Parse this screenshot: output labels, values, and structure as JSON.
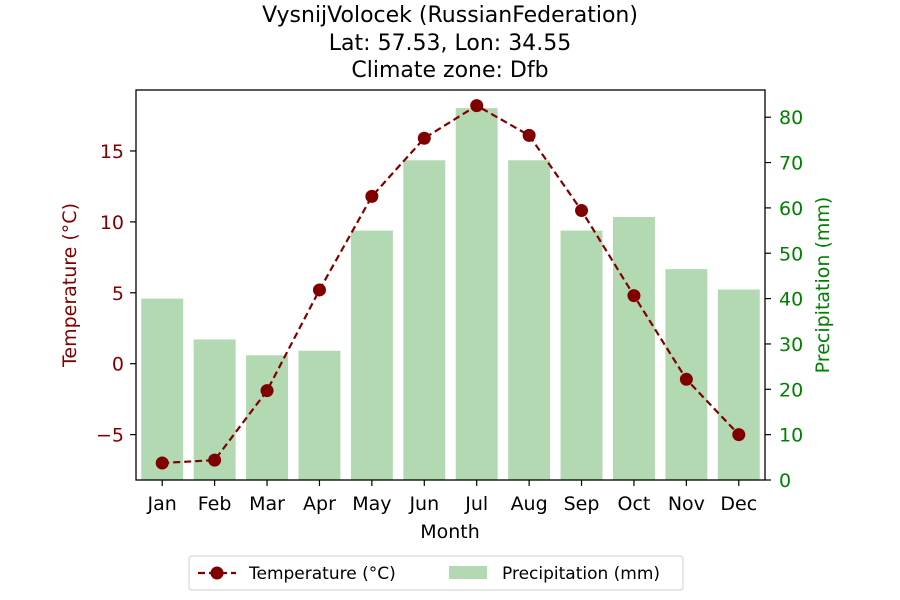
{
  "chart_data": {
    "type": "bar",
    "title": "VysnijVolocek (RussianFederation)",
    "subtitle_lines": [
      "Lat: 57.53, Lon: 34.55",
      "Climate zone: Dfb"
    ],
    "xlabel": "Month",
    "ylabel_left": "Temperature (°C)",
    "ylabel_right": "Precipitation (mm)",
    "categories": [
      "Jan",
      "Feb",
      "Mar",
      "Apr",
      "May",
      "Jun",
      "Jul",
      "Aug",
      "Sep",
      "Oct",
      "Nov",
      "Dec"
    ],
    "series": [
      {
        "name": "Temperature (°C)",
        "type": "line",
        "axis": "left",
        "style": "dashed-with-circle-markers",
        "color": "#800000",
        "values": [
          -7.0,
          -6.8,
          -1.9,
          5.2,
          11.8,
          15.9,
          18.2,
          16.1,
          10.8,
          4.8,
          -1.1,
          -5.0
        ]
      },
      {
        "name": "Precipitation (mm)",
        "type": "bar",
        "axis": "right",
        "color": "#b2d9b2",
        "values": [
          40,
          31,
          27.5,
          28.5,
          55,
          70.5,
          82,
          70.5,
          55,
          58,
          46.5,
          42
        ]
      }
    ],
    "ylim_left": [
      -8.2,
      19.3
    ],
    "ylim_right": [
      0,
      86
    ],
    "yticks_left": [
      -5,
      0,
      5,
      10,
      15
    ],
    "yticks_right": [
      0,
      10,
      20,
      30,
      40,
      50,
      60,
      70,
      80
    ],
    "left_axis_color": "#800000",
    "right_axis_color": "#008000",
    "grid": false,
    "legend_position": "bottom-center"
  }
}
